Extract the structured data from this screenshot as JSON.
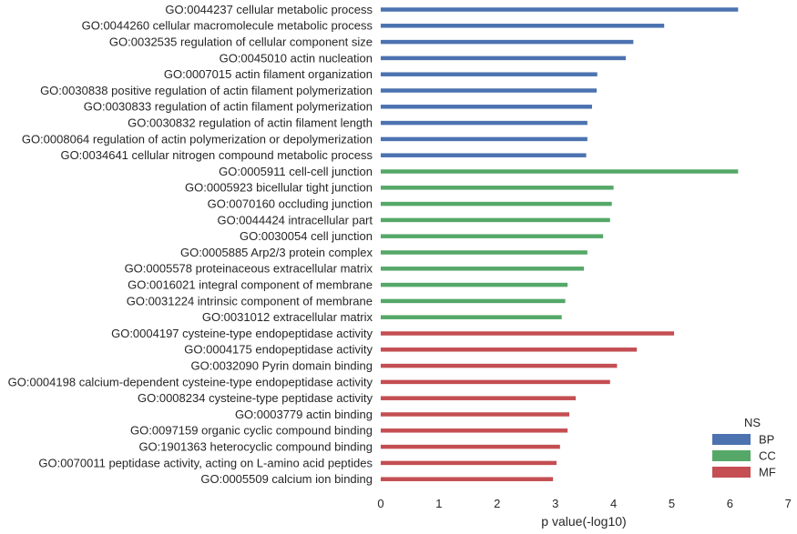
{
  "chart_data": {
    "type": "bar",
    "orientation": "horizontal",
    "xlabel": "p value(-log10)",
    "xlim": [
      0,
      7
    ],
    "xticks": [
      "0",
      "1",
      "2",
      "3",
      "4",
      "5",
      "6",
      "7"
    ],
    "grid": false,
    "legend": {
      "title": "NS",
      "placement": "bottom-right",
      "entries": [
        {
          "name": "BP",
          "color": "#4c72b0"
        },
        {
          "name": "CC",
          "color": "#55a868"
        },
        {
          "name": "MF",
          "color": "#c44e52"
        }
      ]
    },
    "categories": [
      {
        "label": "GO:0044237 cellular metabolic process",
        "value": 6.14,
        "ns": "BP"
      },
      {
        "label": "GO:0044260 cellular macromolecule metabolic process",
        "value": 4.87,
        "ns": "BP"
      },
      {
        "label": "GO:0032535 regulation of cellular component size",
        "value": 4.34,
        "ns": "BP"
      },
      {
        "label": "GO:0045010 actin nucleation",
        "value": 4.21,
        "ns": "BP"
      },
      {
        "label": "GO:0007015 actin filament organization",
        "value": 3.72,
        "ns": "BP"
      },
      {
        "label": "GO:0030838 positive regulation of actin filament polymerization",
        "value": 3.71,
        "ns": "BP"
      },
      {
        "label": "GO:0030833 regulation of actin filament polymerization",
        "value": 3.63,
        "ns": "BP"
      },
      {
        "label": "GO:0030832 regulation of actin filament length",
        "value": 3.55,
        "ns": "BP"
      },
      {
        "label": "GO:0008064 regulation of actin polymerization or depolymerization",
        "value": 3.55,
        "ns": "BP"
      },
      {
        "label": "GO:0034641 cellular nitrogen compound metabolic process",
        "value": 3.53,
        "ns": "BP"
      },
      {
        "label": "GO:0005911 cell-cell junction",
        "value": 6.14,
        "ns": "CC"
      },
      {
        "label": "GO:0005923 bicellular tight junction",
        "value": 4.0,
        "ns": "CC"
      },
      {
        "label": "GO:0070160 occluding junction",
        "value": 3.97,
        "ns": "CC"
      },
      {
        "label": "GO:0044424 intracellular part",
        "value": 3.94,
        "ns": "CC"
      },
      {
        "label": "GO:0030054 cell junction",
        "value": 3.82,
        "ns": "CC"
      },
      {
        "label": "GO:0005885 Arp2/3 protein complex",
        "value": 3.55,
        "ns": "CC"
      },
      {
        "label": "GO:0005578 proteinaceous extracellular matrix",
        "value": 3.49,
        "ns": "CC"
      },
      {
        "label": "GO:0016021 integral component of membrane",
        "value": 3.21,
        "ns": "CC"
      },
      {
        "label": "GO:0031224 intrinsic component of membrane",
        "value": 3.17,
        "ns": "CC"
      },
      {
        "label": "GO:0031012 extracellular matrix",
        "value": 3.11,
        "ns": "CC"
      },
      {
        "label": "GO:0004197 cysteine-type endopeptidase activity",
        "value": 5.04,
        "ns": "MF"
      },
      {
        "label": "GO:0004175 endopeptidase activity",
        "value": 4.4,
        "ns": "MF"
      },
      {
        "label": "GO:0032090 Pyrin domain binding",
        "value": 4.06,
        "ns": "MF"
      },
      {
        "label": "GO:0004198 calcium-dependent cysteine-type endopeptidase activity",
        "value": 3.94,
        "ns": "MF"
      },
      {
        "label": "GO:0008234 cysteine-type peptidase activity",
        "value": 3.35,
        "ns": "MF"
      },
      {
        "label": "GO:0003779 actin binding",
        "value": 3.24,
        "ns": "MF"
      },
      {
        "label": "GO:0097159 organic cyclic compound binding",
        "value": 3.21,
        "ns": "MF"
      },
      {
        "label": "GO:1901363 heterocyclic compound binding",
        "value": 3.08,
        "ns": "MF"
      },
      {
        "label": "GO:0070011 peptidase activity, acting on L-amino acid peptides",
        "value": 3.02,
        "ns": "MF"
      },
      {
        "label": "GO:0005509 calcium ion binding",
        "value": 2.96,
        "ns": "MF"
      }
    ]
  }
}
